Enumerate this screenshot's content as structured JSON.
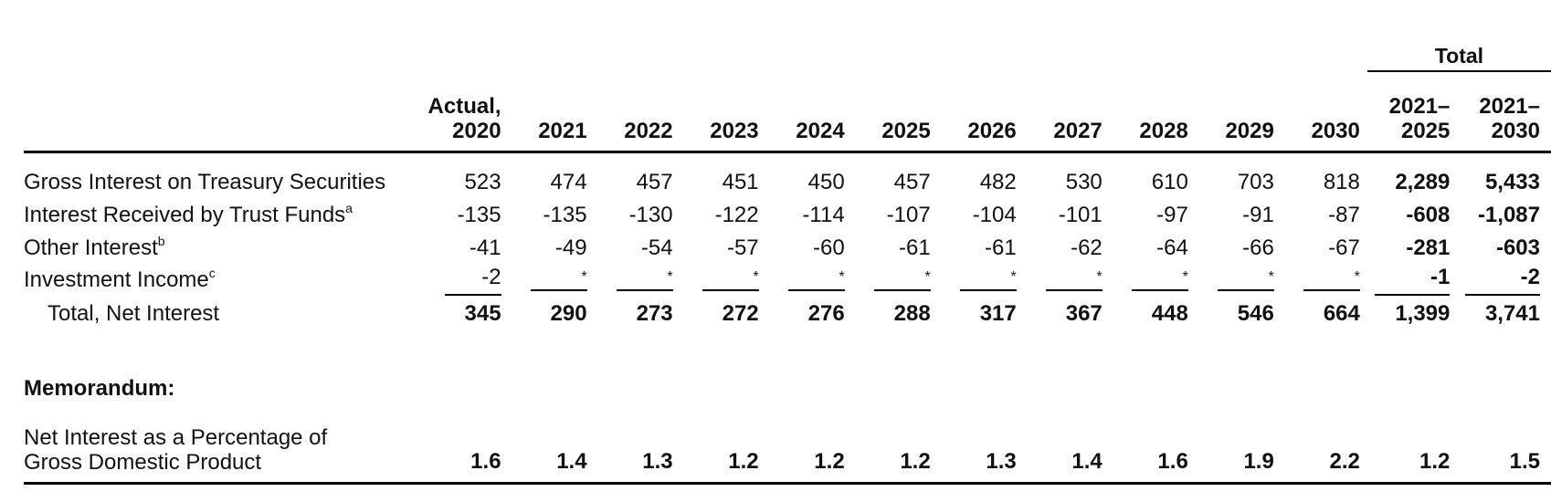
{
  "header": {
    "total_label": "Total",
    "columns": [
      "Actual,\n2020",
      "2021",
      "2022",
      "2023",
      "2024",
      "2025",
      "2026",
      "2027",
      "2028",
      "2029",
      "2030",
      "2021–\n2025",
      "2021–\n2030"
    ]
  },
  "rows": [
    {
      "label": "Gross Interest on Treasury Securities",
      "note": "",
      "values": [
        "523",
        "474",
        "457",
        "451",
        "450",
        "457",
        "482",
        "530",
        "610",
        "703",
        "818",
        "2,289",
        "5,433"
      ]
    },
    {
      "label": "Interest Received by Trust Funds",
      "note": "a",
      "values": [
        "-135",
        "-135",
        "-130",
        "-122",
        "-114",
        "-107",
        "-104",
        "-101",
        "-97",
        "-91",
        "-87",
        "-608",
        "-1,087"
      ]
    },
    {
      "label": "Other Interest",
      "note": "b",
      "values": [
        "-41",
        "-49",
        "-54",
        "-57",
        "-60",
        "-61",
        "-61",
        "-62",
        "-64",
        "-66",
        "-67",
        "-281",
        "-603"
      ]
    },
    {
      "label": "Investment Income",
      "note": "c",
      "values": [
        "-2",
        "*",
        "*",
        "*",
        "*",
        "*",
        "*",
        "*",
        "*",
        "*",
        "*",
        "-1",
        "-2"
      ]
    }
  ],
  "total_row": {
    "label": "Total, Net Interest",
    "values": [
      "345",
      "290",
      "273",
      "272",
      "276",
      "288",
      "317",
      "367",
      "448",
      "546",
      "664",
      "1,399",
      "3,741"
    ]
  },
  "memorandum": {
    "heading": "Memorandum:",
    "label": "Net Interest as a Percentage of\nGross Domestic Product",
    "values": [
      "1.6",
      "1.4",
      "1.3",
      "1.2",
      "1.2",
      "1.2",
      "1.3",
      "1.4",
      "1.6",
      "1.9",
      "2.2",
      "1.2",
      "1.5"
    ]
  }
}
